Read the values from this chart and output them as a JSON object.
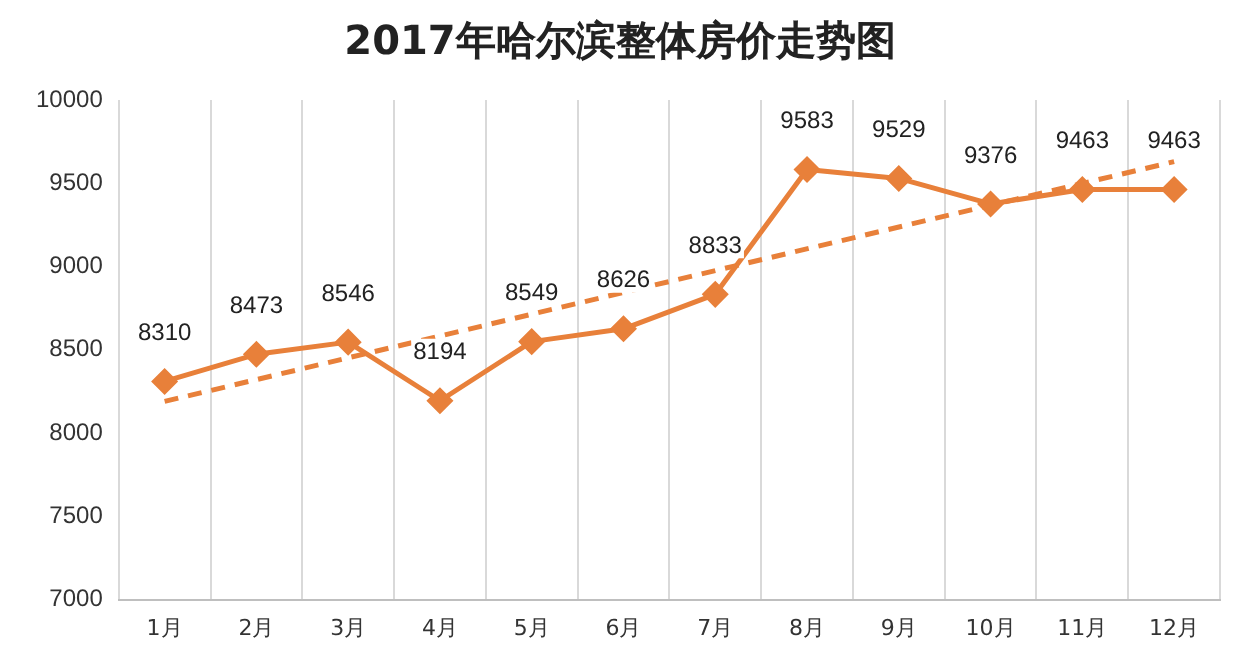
{
  "chart_data": {
    "type": "line",
    "title": "2017年哈尔滨整体房价走势图",
    "categories": [
      "1月",
      "2月",
      "3月",
      "4月",
      "5月",
      "6月",
      "7月",
      "8月",
      "9月",
      "10月",
      "11月",
      "12月"
    ],
    "series": [
      {
        "color": "#e8803a",
        "values": [
          8310,
          8473,
          8546,
          8194,
          8549,
          8626,
          8833,
          9583,
          9529,
          9376,
          9463,
          9463
        ],
        "value_labels": [
          "8310",
          "8473",
          "8546",
          "8194",
          "8549",
          "8626",
          "8833",
          "9583",
          "9529",
          "9376",
          "9463",
          "9463"
        ],
        "marker": "diamond",
        "line_style": "solid"
      },
      {
        "color": "#e8803a",
        "values": [
          8190,
          null,
          null,
          null,
          null,
          null,
          null,
          null,
          null,
          null,
          null,
          9630
        ],
        "marker": "none",
        "line_style": "dashed"
      }
    ],
    "ylim": [
      7000,
      10000
    ],
    "yticks": [
      7000,
      7500,
      8000,
      8500,
      9000,
      9500,
      10000
    ],
    "grid": "x",
    "legend": false
  }
}
